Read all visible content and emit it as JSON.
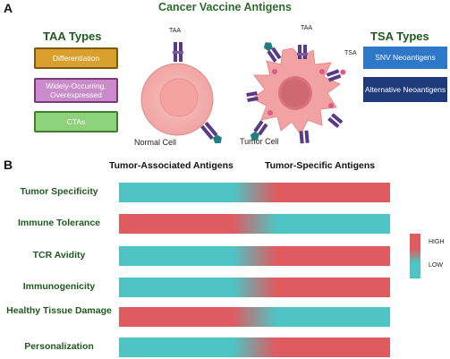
{
  "panel_a": {
    "letter": "A",
    "title": "Cancer Vaccine Antigens",
    "taa_types": {
      "heading": "TAA Types",
      "items": [
        {
          "label": "Differentiation",
          "fill": "#d9a02d",
          "border": "#7a5a10"
        },
        {
          "label": "Widely-Occurring, Overexpressed",
          "fill": "#c98bc9",
          "border": "#7a3a7a"
        },
        {
          "label": "CTAs",
          "fill": "#8ed27a",
          "border": "#3f7f32"
        }
      ]
    },
    "tsa_types": {
      "heading": "TSA Types",
      "items": [
        {
          "label": "SNV Neoantigens",
          "fill": "#2e77c9"
        },
        {
          "label": "Alternative Neoantigens",
          "fill": "#1e3a7a"
        }
      ]
    },
    "normal_cell": {
      "label": "Normal Cell",
      "antigen_label": "TAA"
    },
    "tumor_cell": {
      "label": "Tumor Cell",
      "taa_label": "TAA",
      "tsa_label": "TSA"
    }
  },
  "panel_b": {
    "letter": "B",
    "col_headers": [
      "Tumor-Associated Antigens",
      "Tumor-Specific Antigens"
    ],
    "rows": [
      {
        "label": "Tumor Specificity",
        "taa_level": "LOW",
        "tsa_level": "HIGH"
      },
      {
        "label": "Immune Tolerance",
        "taa_level": "HIGH",
        "tsa_level": "LOW"
      },
      {
        "label": "TCR Avidity",
        "taa_level": "LOW",
        "tsa_level": "HIGH"
      },
      {
        "label": "Immunogenicity",
        "taa_level": "LOW",
        "tsa_level": "HIGH"
      },
      {
        "label": "Healthy Tissue Damage",
        "taa_level": "HIGH",
        "tsa_level": "LOW"
      },
      {
        "label": "Personalization",
        "taa_level": "LOW",
        "tsa_level": "HIGH"
      }
    ],
    "legend": {
      "high": "HIGH",
      "low": "LOW",
      "high_color": "#de5b5f",
      "low_color": "#4fc4c4"
    }
  }
}
